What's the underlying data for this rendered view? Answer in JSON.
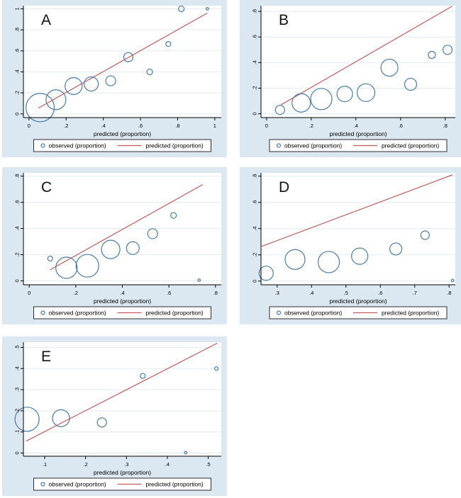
{
  "figure": {
    "description": "Five calibration bubble plots (A-E) of observed vs predicted proportions with a predicted reference line",
    "xlabel": "predicted (proportion)",
    "legend_observed": "observed (proportion)",
    "legend_predicted": "predicted (proportion)"
  },
  "colors": {
    "panel_bg": "#dbe7f1",
    "plot_bg": "#ffffff",
    "grid": "#e2ebf3",
    "axis": "#000000",
    "marker": "#4a7ba7",
    "line": "#c25b5b",
    "legend_border": "#2d2d2d",
    "text": "#000000"
  },
  "chart_data": [
    {
      "type": "scatter",
      "label": "A",
      "xlabel": "predicted (proportion)",
      "legend": [
        "observed (proportion)",
        "predicted (proportion)"
      ],
      "legend_position": "bottom",
      "grid": "horizontal",
      "xlim": [
        -0.03,
        1.035
      ],
      "ylim": [
        -0.035,
        1.03
      ],
      "xticks": [
        0,
        0.2,
        0.4,
        0.6,
        0.8,
        1
      ],
      "xtick_labels": [
        "0",
        ".2",
        ".4",
        ".6",
        ".8",
        "1"
      ],
      "yticks": [
        0,
        0.2,
        0.4,
        0.6,
        0.8,
        1
      ],
      "ytick_labels": [
        "0",
        ".2",
        ".4",
        ".6",
        ".8",
        "1"
      ],
      "line": [
        [
          0.05,
          0.055
        ],
        [
          0.96,
          0.96
        ]
      ],
      "points": [
        [
          0.06,
          0.06,
          20
        ],
        [
          0.145,
          0.135,
          14
        ],
        [
          0.24,
          0.265,
          12
        ],
        [
          0.335,
          0.285,
          10
        ],
        [
          0.44,
          0.315,
          7
        ],
        [
          0.535,
          0.54,
          6.5
        ],
        [
          0.65,
          0.4,
          4
        ],
        [
          0.75,
          0.665,
          3.5
        ],
        [
          0.82,
          1.0,
          4
        ],
        [
          0.96,
          1.0,
          1.8
        ]
      ]
    },
    {
      "type": "scatter",
      "label": "B",
      "xlabel": "predicted (proportion)",
      "legend": [
        "observed (proportion)",
        "predicted (proportion)"
      ],
      "legend_position": "bottom",
      "grid": "horizontal",
      "xlim": [
        -0.025,
        0.845
      ],
      "ylim": [
        -0.03,
        0.845
      ],
      "xticks": [
        0,
        0.2,
        0.4,
        0.6,
        0.8
      ],
      "xtick_labels": [
        "0",
        ".2",
        ".4",
        ".6",
        ".8"
      ],
      "yticks": [
        0,
        0.2,
        0.4,
        0.6,
        0.8
      ],
      "ytick_labels": [
        "0",
        ".2",
        ".4",
        ".6",
        ".8"
      ],
      "line": [
        [
          0.065,
          0.07
        ],
        [
          0.83,
          0.84
        ]
      ],
      "points": [
        [
          0.06,
          0.03,
          6.5
        ],
        [
          0.155,
          0.085,
          13
        ],
        [
          0.245,
          0.115,
          15
        ],
        [
          0.35,
          0.155,
          11
        ],
        [
          0.445,
          0.165,
          12.5
        ],
        [
          0.55,
          0.36,
          12
        ],
        [
          0.645,
          0.23,
          8.5
        ],
        [
          0.74,
          0.46,
          5
        ],
        [
          0.81,
          0.5,
          6.5
        ]
      ]
    },
    {
      "type": "scatter",
      "label": "C",
      "xlabel": "predicted (proportion)",
      "legend": [
        "observed (proportion)",
        "predicted (proportion)"
      ],
      "legend_position": "bottom",
      "grid": "horizontal",
      "xlim": [
        -0.025,
        0.825
      ],
      "ylim": [
        -0.03,
        0.825
      ],
      "xticks": [
        0,
        0.2,
        0.4,
        0.6,
        0.8
      ],
      "xtick_labels": [
        "0",
        ".2",
        ".4",
        ".6",
        ".8"
      ],
      "yticks": [
        0,
        0.2,
        0.4,
        0.6,
        0.8
      ],
      "ytick_labels": [
        "0",
        ".2",
        ".4",
        ".6",
        ".8"
      ],
      "line": [
        [
          0.09,
          0.085
        ],
        [
          0.745,
          0.735
        ]
      ],
      "points": [
        [
          0.09,
          0.17,
          3.5
        ],
        [
          0.16,
          0.1,
          15
        ],
        [
          0.25,
          0.115,
          16
        ],
        [
          0.35,
          0.24,
          13
        ],
        [
          0.445,
          0.25,
          9
        ],
        [
          0.53,
          0.36,
          7
        ],
        [
          0.62,
          0.5,
          4
        ],
        [
          0.73,
          0.005,
          1.8
        ]
      ]
    },
    {
      "type": "scatter",
      "label": "D",
      "xlabel": "predicted (proportion)",
      "legend": [
        "observed (proportion)",
        "predicted (proportion)"
      ],
      "legend_position": "bottom",
      "grid": "horizontal",
      "xlim": [
        0.253,
        0.818
      ],
      "ylim": [
        -0.028,
        0.825
      ],
      "xticks": [
        0.3,
        0.4,
        0.5,
        0.6,
        0.7,
        0.8
      ],
      "xtick_labels": [
        ".3",
        ".4",
        ".5",
        ".6",
        ".7",
        ".8"
      ],
      "yticks": [
        0,
        0.2,
        0.4,
        0.6,
        0.8
      ],
      "ytick_labels": [
        "0",
        ".2",
        ".4",
        ".6",
        ".8"
      ],
      "line": [
        [
          0.255,
          0.265
        ],
        [
          0.81,
          0.81
        ]
      ],
      "points": [
        [
          0.268,
          0.06,
          10
        ],
        [
          0.352,
          0.165,
          14
        ],
        [
          0.45,
          0.145,
          15
        ],
        [
          0.54,
          0.19,
          11.5
        ],
        [
          0.645,
          0.245,
          8.5
        ],
        [
          0.73,
          0.35,
          6
        ],
        [
          0.81,
          0.005,
          1.8
        ]
      ]
    },
    {
      "type": "scatter",
      "label": "E",
      "xlabel": "predicted (proportion)",
      "legend": [
        "observed (proportion)",
        "predicted (proportion)"
      ],
      "legend_position": "bottom",
      "grid": "horizontal",
      "xlim": [
        0.048,
        0.532
      ],
      "ylim": [
        -0.015,
        0.525
      ],
      "xticks": [
        0.1,
        0.2,
        0.3,
        0.4,
        0.5
      ],
      "xtick_labels": [
        ".1",
        ".2",
        ".3",
        ".4",
        ".5"
      ],
      "yticks": [
        0,
        0.1,
        0.2,
        0.3,
        0.4,
        0.5
      ],
      "ytick_labels": [
        "0",
        ".1",
        ".2",
        ".3",
        ".4",
        ".5"
      ],
      "line": [
        [
          0.055,
          0.057
        ],
        [
          0.522,
          0.52
        ]
      ],
      "points": [
        [
          0.057,
          0.16,
          17
        ],
        [
          0.14,
          0.165,
          12
        ],
        [
          0.24,
          0.145,
          6.5
        ],
        [
          0.34,
          0.365,
          3.5
        ],
        [
          0.445,
          0.002,
          1.8
        ],
        [
          0.52,
          0.4,
          2.5
        ]
      ]
    }
  ]
}
